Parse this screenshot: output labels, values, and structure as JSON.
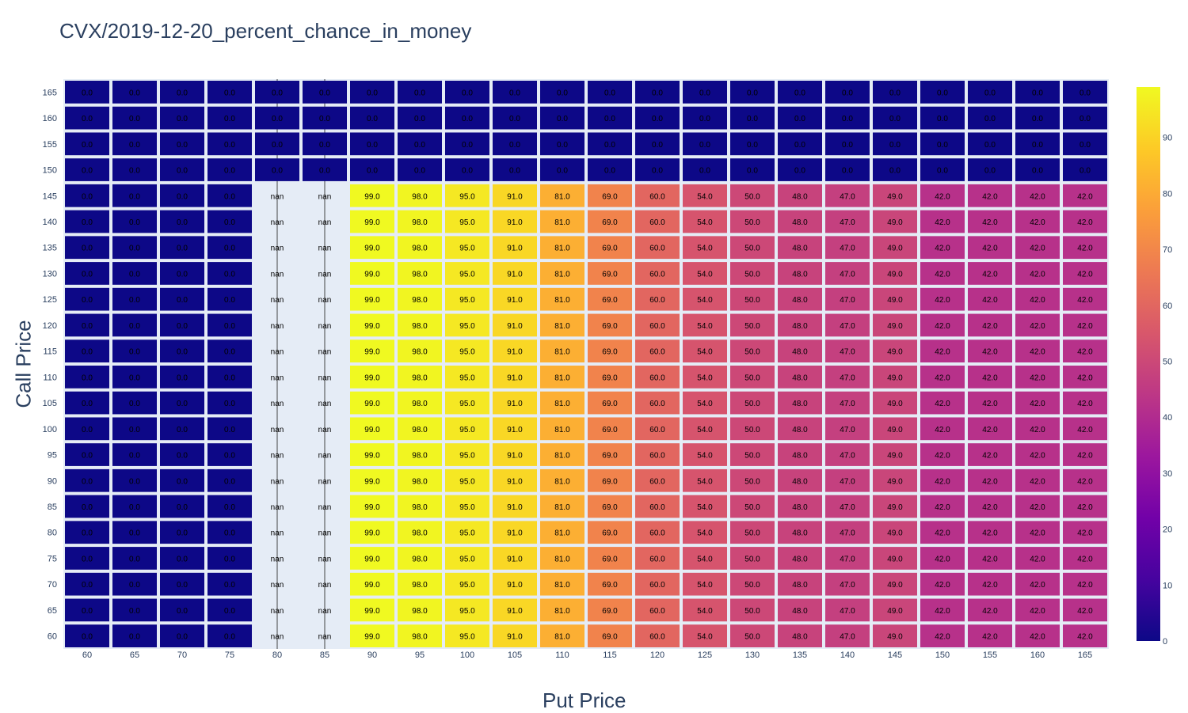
{
  "chart_data": {
    "type": "heatmap",
    "title": "CVX/2019-12-20_percent_chance_in_money",
    "xlabel": "Put Price",
    "ylabel": "Call Price",
    "x": [
      60,
      65,
      70,
      75,
      80,
      85,
      90,
      95,
      100,
      105,
      110,
      115,
      120,
      125,
      130,
      135,
      140,
      145,
      150,
      155,
      160,
      165
    ],
    "y": [
      60,
      65,
      70,
      75,
      80,
      85,
      90,
      95,
      100,
      105,
      110,
      115,
      120,
      125,
      130,
      135,
      140,
      145,
      150,
      155,
      160,
      165
    ],
    "rows_above_145": [
      0,
      0,
      0,
      0,
      0,
      0,
      0,
      0,
      0,
      0,
      0,
      0,
      0,
      0,
      0,
      0,
      0,
      0,
      0,
      0,
      0,
      0
    ],
    "rows_60_to_145": [
      0,
      0,
      0,
      0,
      null,
      null,
      99,
      98,
      95,
      91,
      81,
      69,
      60,
      54,
      50,
      48,
      47,
      49,
      42,
      42,
      42,
      42
    ],
    "cell_text_missing": "nan",
    "colorscale": "plasma",
    "colorbar": {
      "min": 0,
      "max": 99,
      "ticks": [
        0,
        10,
        20,
        30,
        40,
        50,
        60,
        70,
        80,
        90
      ]
    },
    "colors": {
      "missing_bg": "#e5ecf6",
      "axis_text": "#2a3f5f"
    }
  }
}
